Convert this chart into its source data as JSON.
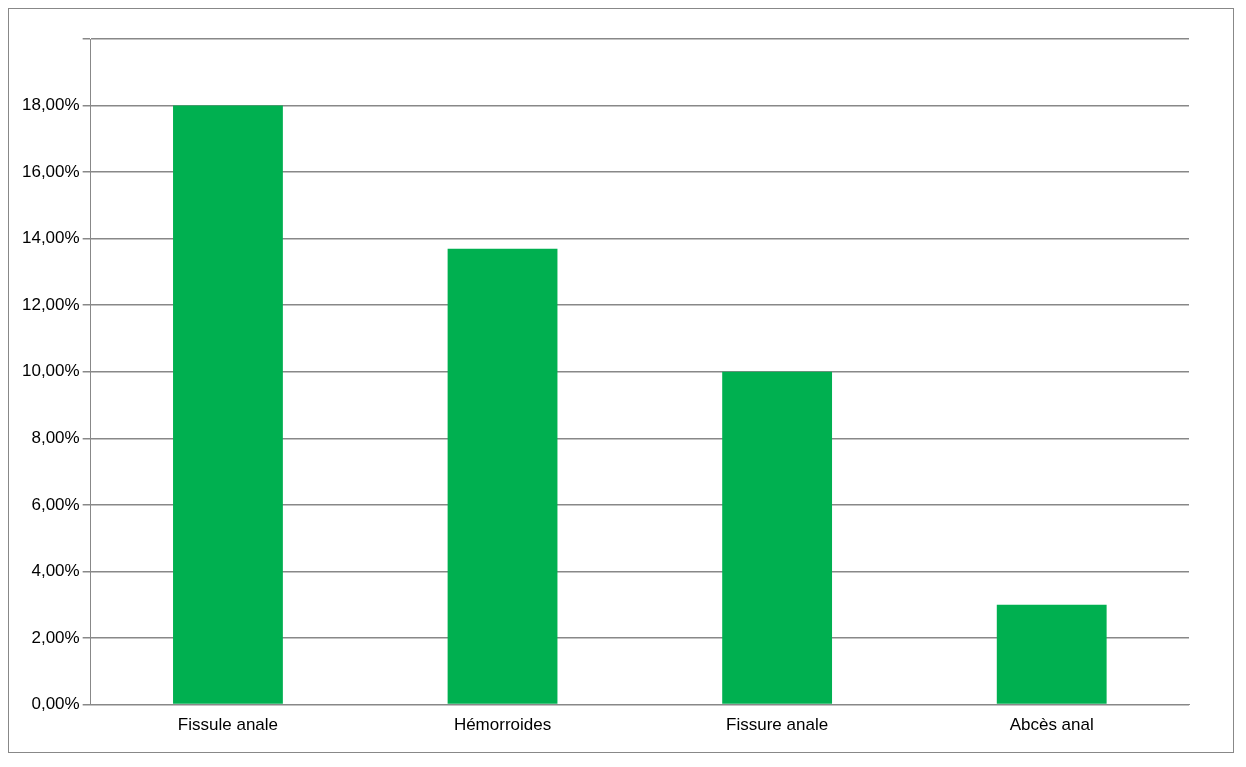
{
  "chart_data": {
    "type": "bar",
    "categories": [
      "Fissule anale",
      "Hémorroides",
      "Fissure anale",
      "Abcès anal"
    ],
    "values": [
      18,
      13.7,
      10,
      3
    ],
    "color": "#00b050",
    "ylim": [
      0,
      20
    ],
    "yticks": [
      {
        "value": 0,
        "label": "0,00%"
      },
      {
        "value": 2,
        "label": "2,00%"
      },
      {
        "value": 4,
        "label": "4,00%"
      },
      {
        "value": 6,
        "label": "6,00%"
      },
      {
        "value": 8,
        "label": "8,00%"
      },
      {
        "value": 10,
        "label": "10,00%"
      },
      {
        "value": 12,
        "label": "12,00%"
      },
      {
        "value": 14,
        "label": "14,00%"
      },
      {
        "value": 16,
        "label": "16,00%"
      },
      {
        "value": 18,
        "label": "18,00%"
      },
      {
        "value": 20,
        "label": null
      }
    ],
    "grid": "y",
    "legend": false
  }
}
